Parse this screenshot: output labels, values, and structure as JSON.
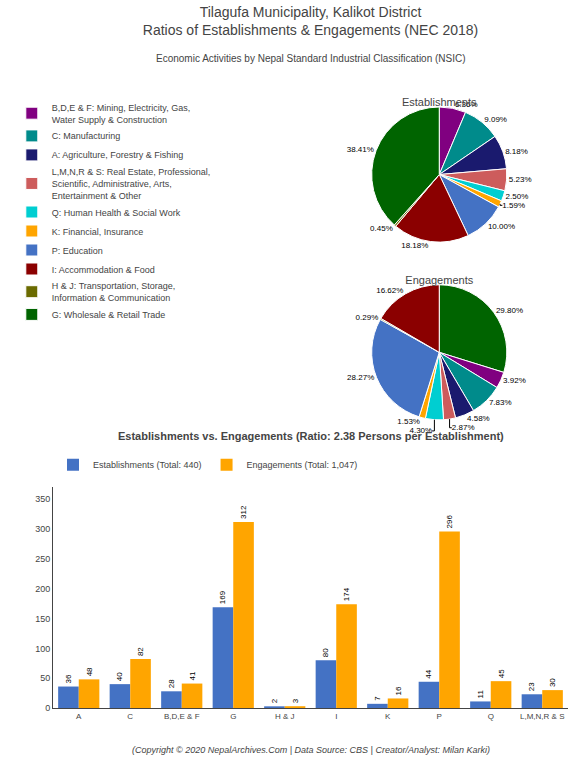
{
  "title": "Tilagufa Municipality, Kalikot District\nRatios of Establishments & Engagements (NEC 2018)",
  "subtitle": "Economic Activities by Nepal Standard Industrial Classification (NSIC)",
  "annotations": [
    "(Copyright © 2020 NepalArchives.Com | Data Source: CBS | Creator/Analyst: Milan Karki)"
  ],
  "chart_data": [
    {
      "type": "pie",
      "title": "Establishments",
      "categories": [
        "B,D,E & F: Mining, Electricity, Gas,\nWater Supply & Construction",
        "C: Manufacturing",
        "A: Agriculture, Forestry & Fishing",
        "L,M,N,R & S: Real Estate, Professional,\nScientific, Administrative, Arts,\nEntertainment & Other",
        "Q: Human Health & Social Work",
        "K: Financial, Insurance",
        "P: Education",
        "I: Accommodation & Food",
        "H & J: Transportation, Storage,\nInformation & Communication",
        "G: Wholesale & Retail Trade"
      ],
      "values": [
        6.36,
        9.09,
        8.18,
        5.23,
        2.5,
        1.59,
        10.0,
        18.18,
        0.45,
        38.41
      ],
      "value_labels": [
        "6.36%",
        "9.09%",
        "8.18%",
        "5.23%",
        "2.50%",
        "1.59%",
        "10.00%",
        "18.18%",
        "0.45%",
        "38.41%"
      ],
      "colors": [
        "#800080",
        "#008B8B",
        "#1a1a6e",
        "#CD5C5C",
        "#00CED1",
        "#FFA500",
        "#4472C4",
        "#8B0000",
        "#6B6B00",
        "#006400"
      ],
      "data_labels": true,
      "legend": "left"
    },
    {
      "type": "pie",
      "title": "Engagements",
      "categories": [
        "G: Wholesale & Retail Trade",
        "B,D,E & F: Mining, Electricity, Gas,\nWater Supply & Construction",
        "C: Manufacturing",
        "A: Agriculture, Forestry & Fishing",
        "L,M,N,R & S: Real Estate, Professional,\nScientific, Administrative, Arts,\nEntertainment & Other",
        "Q: Human Health & Social Work",
        "K: Financial, Insurance",
        "P: Education",
        "H & J: Transportation, Storage,\nInformation & Communication",
        "I: Accommodation & Food"
      ],
      "values": [
        29.8,
        3.92,
        7.83,
        4.58,
        2.87,
        4.3,
        1.53,
        28.27,
        0.29,
        16.62
      ],
      "value_labels": [
        "29.80%",
        "3.92%",
        "7.83%",
        "4.58%",
        "2.87%",
        "4.30%",
        "1.53%",
        "28.27%",
        "0.29%",
        "16.62%"
      ],
      "colors": [
        "#006400",
        "#800080",
        "#008B8B",
        "#1a1a6e",
        "#CD5C5C",
        "#00CED1",
        "#FFA500",
        "#4472C4",
        "#6B6B00",
        "#8B0000"
      ],
      "data_labels": true,
      "legend": "left"
    },
    {
      "type": "bar",
      "title": "Establishments vs. Engagements (Ratio: 2.38 Persons per Establishment)",
      "categories": [
        "A",
        "C",
        "B,D,E & F",
        "G",
        "H & J",
        "I",
        "K",
        "P",
        "Q",
        "L,M,N,R & S"
      ],
      "series": [
        {
          "name": "Establishments (Total: 440)",
          "color": "#4472C4",
          "values": [
            36,
            40,
            28,
            169,
            2,
            80,
            7,
            44,
            11,
            23
          ]
        },
        {
          "name": "Engagements (Total: 1,047)",
          "color": "#FFA500",
          "values": [
            48,
            82,
            41,
            312,
            3,
            174,
            16,
            296,
            45,
            30
          ]
        }
      ],
      "ylim": [
        0,
        370
      ],
      "yticks": [
        0,
        50,
        100,
        150,
        200,
        250,
        300,
        350
      ],
      "grid": false,
      "data_labels": true,
      "legend": "top"
    }
  ]
}
